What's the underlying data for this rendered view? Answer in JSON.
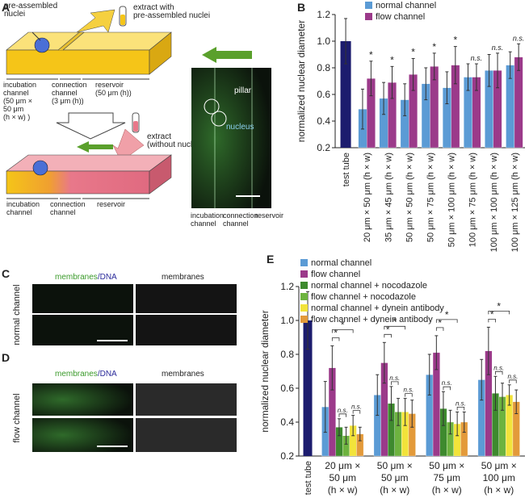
{
  "figure": {
    "A": {
      "letter": "A",
      "nuclei": [
        "pre-assembled",
        "nuclei"
      ],
      "extract_top": [
        "extract with",
        "pre-assembled nuclei"
      ],
      "incubation_top": [
        "incubation",
        "channel",
        "(50 μm ×",
        "50 μm",
        "(h × w) )"
      ],
      "connection_top": [
        "connection",
        "channel",
        "(3 μm (h))"
      ],
      "reservoir_top": [
        "reservoir",
        "(50 μm (h))"
      ],
      "extract_bottom": [
        "extract",
        "(without nuclei)"
      ],
      "incubation_bottom": [
        "incubation",
        "channel"
      ],
      "connection_bottom": [
        "connection",
        "channel"
      ],
      "reservoir_bottom": "reservoir",
      "pillar": "pillar",
      "nucleus": "nucleus",
      "micro_incubation": [
        "incubation",
        "channel"
      ],
      "micro_connection": [
        "connection",
        "channel"
      ],
      "micro_reservoir": "reservoir"
    },
    "C": {
      "letter": "C",
      "stain_a": "membranes",
      "stain_b": "/DNA",
      "stain_only": "membranes",
      "row_label": "normal channel"
    },
    "D": {
      "letter": "D",
      "stain_a": "membranes",
      "stain_b": "/DNA",
      "stain_only": "membranes",
      "row_label": "flow channel"
    }
  },
  "chart_data": [
    {
      "panel_label": "B",
      "type": "bar",
      "ylabel": "normalized nuclear diameter",
      "categories": [
        "test tube",
        "20 μm × 50 μm (h × w)",
        "35 μm × 45 μm (h × w)",
        "50 μm × 50 μm (h × w)",
        "50 μm × 75 μm (h × w)",
        "50 μm × 100 μm (h × w)",
        "100 μm × 75 μm (h × w)",
        "100 μm × 100 μm (h × w)",
        "100 μm × 125 μm (h × w)"
      ],
      "reference": {
        "value": 1.0,
        "error": 0.17,
        "color": "#1c1c6e"
      },
      "series": [
        {
          "name": "normal channel",
          "color": "#5b9bd5",
          "values": [
            null,
            0.49,
            0.57,
            0.56,
            0.68,
            0.65,
            0.73,
            0.78,
            0.82
          ],
          "errors": [
            null,
            0.15,
            0.12,
            0.12,
            0.12,
            0.12,
            0.1,
            0.12,
            0.1
          ]
        },
        {
          "name": "flow channel",
          "color": "#9b3a8a",
          "values": [
            null,
            0.72,
            0.69,
            0.75,
            0.81,
            0.82,
            0.73,
            0.78,
            0.88
          ],
          "errors": [
            null,
            0.13,
            0.12,
            0.12,
            0.1,
            0.14,
            0.1,
            0.13,
            0.1
          ]
        }
      ],
      "significance": [
        null,
        "*",
        "*",
        "*",
        "*",
        "*",
        "n.s.",
        "n.s.",
        "n.s."
      ],
      "ylim": [
        0.2,
        1.2
      ],
      "yticks": [
        0.2,
        0.4,
        0.6,
        0.8,
        {
          "value": 1.0,
          "label": "1.0"
        },
        1.2
      ],
      "legend": "top"
    },
    {
      "panel_label": "E",
      "type": "bar",
      "ylabel": "normalized nuclear diameter",
      "categories": [
        "test tube",
        [
          "20 μm ×",
          "50 μm",
          "(h × w)"
        ],
        [
          "50 μm ×",
          "50 μm",
          "(h × w)"
        ],
        [
          "50 μm ×",
          "75 μm",
          "(h × w)"
        ],
        [
          "50 μm ×",
          "100 μm",
          "(h × w)"
        ]
      ],
      "reference": {
        "value": 1.0,
        "error": 0.17,
        "color": "#1c1c6e"
      },
      "series": [
        {
          "name": "normal channel",
          "color": "#5b9bd5",
          "values": [
            null,
            0.49,
            0.56,
            0.68,
            0.65
          ],
          "errors": [
            null,
            0.15,
            0.12,
            0.12,
            0.12
          ]
        },
        {
          "name": "flow channel",
          "color": "#9b3a8a",
          "values": [
            null,
            0.72,
            0.75,
            0.81,
            0.82
          ],
          "errors": [
            null,
            0.13,
            0.12,
            0.1,
            0.14
          ]
        },
        {
          "name": "normal channel + nocodazole",
          "color": "#3e8a2e",
          "values": [
            null,
            0.37,
            0.51,
            0.48,
            0.57
          ],
          "errors": [
            null,
            0.05,
            0.1,
            0.1,
            0.1
          ]
        },
        {
          "name": "flow channel + nocodazole",
          "color": "#6db33f",
          "values": [
            null,
            0.32,
            0.46,
            0.4,
            0.55
          ],
          "errors": [
            null,
            0.05,
            0.08,
            0.07,
            0.08
          ]
        },
        {
          "name": "normal channel + dynein antibody",
          "color": "#f2e33a",
          "values": [
            null,
            0.38,
            0.46,
            0.39,
            0.56
          ],
          "errors": [
            null,
            0.06,
            0.08,
            0.07,
            0.06
          ]
        },
        {
          "name": "flow channel + dynein antibody",
          "color": "#e39a3a",
          "values": [
            null,
            0.33,
            0.45,
            0.4,
            0.52
          ],
          "errors": [
            null,
            0.04,
            0.08,
            0.06,
            0.07
          ]
        }
      ],
      "brackets": [
        {
          "from": 1,
          "to": 2,
          "label": "*"
        },
        {
          "from": 1,
          "to": 4,
          "label": "*"
        },
        {
          "from": 2,
          "to": 3,
          "label": "n.s."
        },
        {
          "from": 4,
          "to": 5,
          "label": "n.s."
        }
      ],
      "ylim": [
        0.2,
        1.2
      ],
      "yticks": [
        0.2,
        0.4,
        0.6,
        0.8,
        {
          "value": 1.0,
          "label": "1.0"
        },
        1.2
      ],
      "legend": "top-left"
    }
  ]
}
